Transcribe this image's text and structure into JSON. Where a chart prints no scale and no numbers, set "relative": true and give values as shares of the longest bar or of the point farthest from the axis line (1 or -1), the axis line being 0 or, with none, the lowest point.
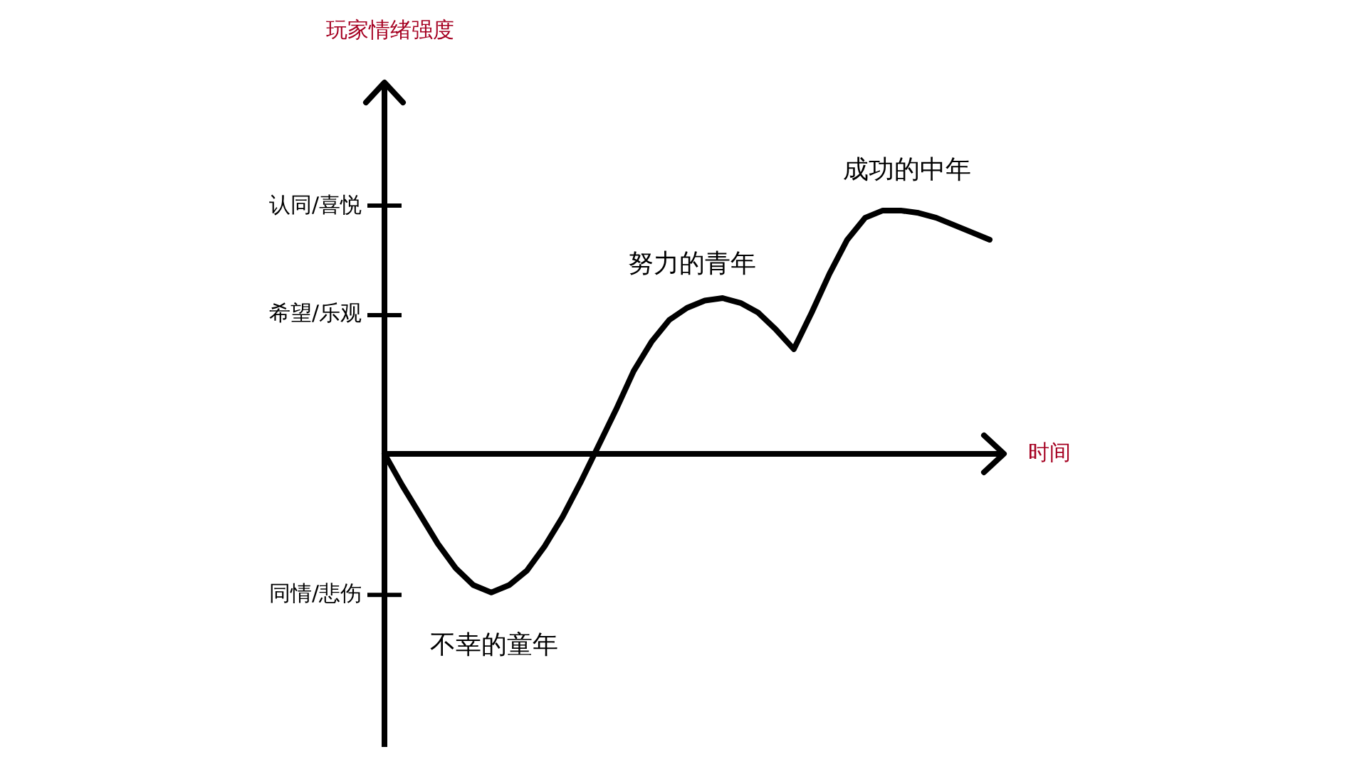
{
  "chart_data": {
    "type": "line",
    "relative": true,
    "xlabel": "时间",
    "categories": [
      null,
      null,
      null,
      null,
      null,
      null,
      null,
      null,
      null,
      null,
      null,
      null,
      null,
      null,
      null,
      null,
      null,
      null,
      null,
      null,
      null,
      null,
      null,
      null,
      null,
      null,
      null,
      null,
      null,
      null,
      null,
      null,
      null,
      null,
      null
    ],
    "values": [
      0,
      -0.13,
      -0.25,
      -0.37,
      -0.47,
      -0.54,
      -0.57,
      -0.54,
      -0.48,
      -0.38,
      -0.26,
      -0.12,
      0.03,
      0.18,
      0.34,
      0.46,
      0.55,
      0.6,
      0.63,
      0.64,
      0.62,
      0.58,
      0.51,
      0.43,
      0.58,
      0.74,
      0.88,
      0.97,
      1,
      1,
      0.99,
      0.97,
      0.94,
      0.91,
      0.88
    ],
    "color": "#000000",
    "line_style": "solid",
    "annotations": [
      "不幸的童年",
      "努力的青年",
      "成功的中年",
      "认同/喜悦",
      "希望/乐观",
      "同情/悲伤",
      "玩家情绪强度"
    ]
  }
}
